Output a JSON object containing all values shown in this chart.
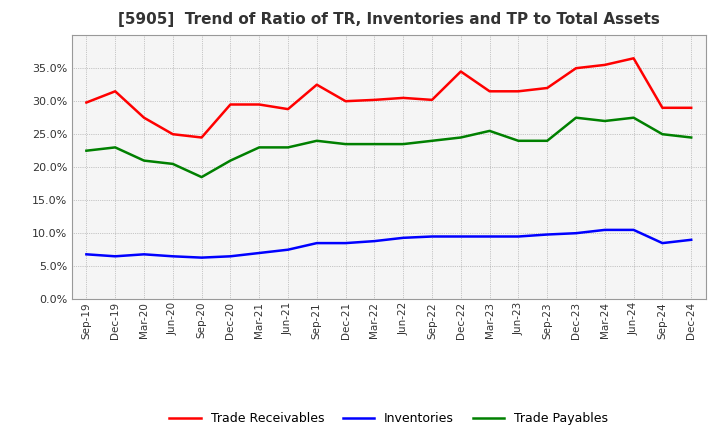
{
  "title": "[5905]  Trend of Ratio of TR, Inventories and TP to Total Assets",
  "x_labels": [
    "Sep-19",
    "Dec-19",
    "Mar-20",
    "Jun-20",
    "Sep-20",
    "Dec-20",
    "Mar-21",
    "Jun-21",
    "Sep-21",
    "Dec-21",
    "Mar-22",
    "Jun-22",
    "Sep-22",
    "Dec-22",
    "Mar-23",
    "Jun-23",
    "Sep-23",
    "Dec-23",
    "Mar-24",
    "Jun-24",
    "Sep-24",
    "Dec-24"
  ],
  "trade_receivables": [
    29.8,
    31.5,
    27.5,
    25.0,
    24.5,
    29.5,
    29.5,
    28.8,
    32.5,
    30.0,
    30.2,
    30.5,
    30.2,
    34.5,
    31.5,
    31.5,
    32.0,
    35.0,
    35.5,
    36.5,
    29.0,
    29.0
  ],
  "inventories": [
    6.8,
    6.5,
    6.8,
    6.5,
    6.3,
    6.5,
    7.0,
    7.5,
    8.5,
    8.5,
    8.8,
    9.3,
    9.5,
    9.5,
    9.5,
    9.5,
    9.8,
    10.0,
    10.5,
    10.5,
    8.5,
    9.0
  ],
  "trade_payables": [
    22.5,
    23.0,
    21.0,
    20.5,
    18.5,
    21.0,
    23.0,
    23.0,
    24.0,
    23.5,
    23.5,
    23.5,
    24.0,
    24.5,
    25.5,
    24.0,
    24.0,
    27.5,
    27.0,
    27.5,
    25.0,
    24.5
  ],
  "tr_color": "#ff0000",
  "inv_color": "#0000ff",
  "tp_color": "#008000",
  "ylim": [
    0,
    40
  ],
  "yticks": [
    0.0,
    5.0,
    10.0,
    15.0,
    20.0,
    25.0,
    30.0,
    35.0
  ],
  "background_color": "#ffffff",
  "plot_bg_color": "#f5f5f5",
  "grid_color": "#999999",
  "title_fontsize": 11,
  "line_width": 1.8
}
